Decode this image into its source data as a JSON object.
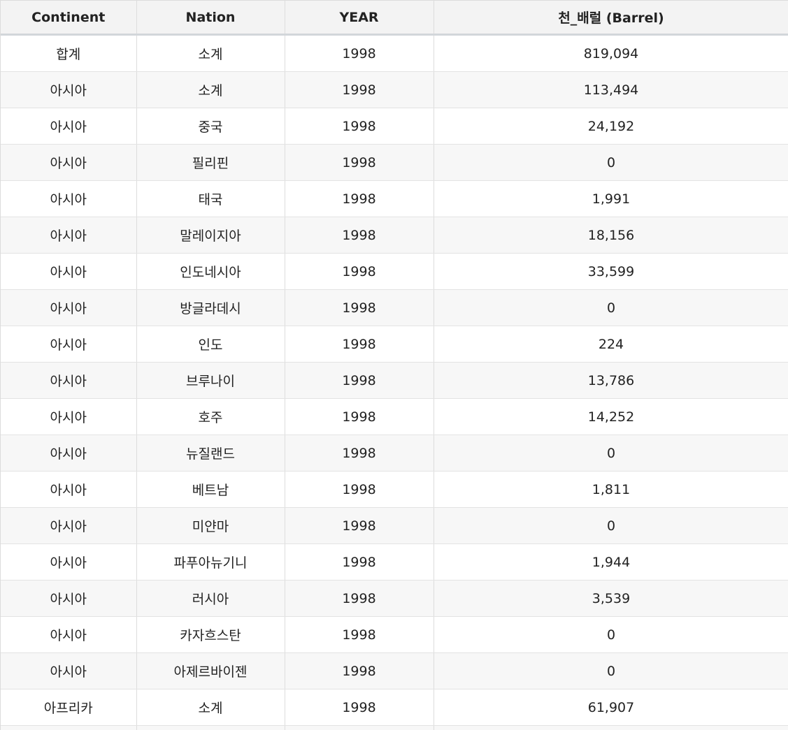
{
  "table": {
    "columns": [
      "Continent",
      "Nation",
      "YEAR",
      "천_배럴 (Barrel)"
    ],
    "rows": [
      [
        "합계",
        "소계",
        "1998",
        "819,094"
      ],
      [
        "아시아",
        "소계",
        "1998",
        "113,494"
      ],
      [
        "아시아",
        "중국",
        "1998",
        "24,192"
      ],
      [
        "아시아",
        "필리핀",
        "1998",
        "0"
      ],
      [
        "아시아",
        "태국",
        "1998",
        "1,991"
      ],
      [
        "아시아",
        "말레이지아",
        "1998",
        "18,156"
      ],
      [
        "아시아",
        "인도네시아",
        "1998",
        "33,599"
      ],
      [
        "아시아",
        "방글라데시",
        "1998",
        "0"
      ],
      [
        "아시아",
        "인도",
        "1998",
        "224"
      ],
      [
        "아시아",
        "브루나이",
        "1998",
        "13,786"
      ],
      [
        "아시아",
        "호주",
        "1998",
        "14,252"
      ],
      [
        "아시아",
        "뉴질랜드",
        "1998",
        "0"
      ],
      [
        "아시아",
        "베트남",
        "1998",
        "1,811"
      ],
      [
        "아시아",
        "미얀마",
        "1998",
        "0"
      ],
      [
        "아시아",
        "파푸아뉴기니",
        "1998",
        "1,944"
      ],
      [
        "아시아",
        "러시아",
        "1998",
        "3,539"
      ],
      [
        "아시아",
        "카자흐스탄",
        "1998",
        "0"
      ],
      [
        "아시아",
        "아제르바이젠",
        "1998",
        "0"
      ],
      [
        "아프리카",
        "소계",
        "1998",
        "61,907"
      ]
    ]
  }
}
